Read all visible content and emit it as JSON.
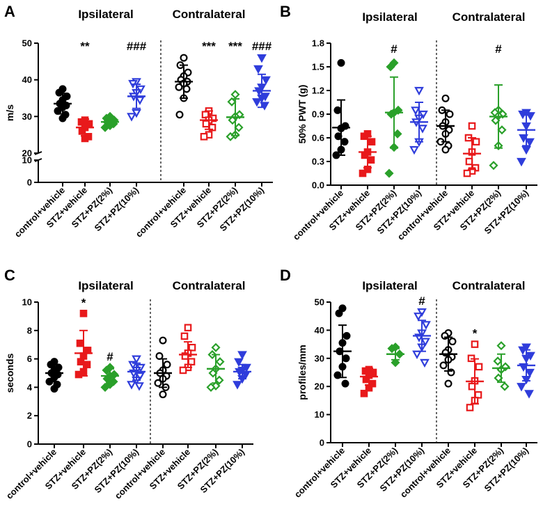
{
  "colors": {
    "control": "#000000",
    "stz_vehicle": "#e8191b",
    "pz2": "#2aa02a",
    "pz10": "#2f3ddb"
  },
  "chart_data": [
    {
      "panel": "A",
      "type": "scatter",
      "ylabel": "m/s",
      "broken_axis": true,
      "yticks": [
        "0",
        "10",
        "20",
        "30",
        "40",
        "50"
      ],
      "upper_range": [
        20,
        50
      ],
      "lower_range": [
        0,
        10
      ],
      "group_titles": [
        "Ipsilateral",
        "Contralateral"
      ],
      "categories": [
        "control+vehicle",
        "STZ+vehicle",
        "STZ+PZ(2%)",
        "STZ+PZ(10%)",
        "control+vehicle",
        "STZ+vehicle",
        "STZ+PZ(2%)",
        "STZ+PZ(10%)"
      ],
      "series": [
        {
          "name": "control+vehicle",
          "side": "Ipsilateral",
          "color": "control",
          "marker": "circle",
          "filled": true,
          "mean": 33.5,
          "sd": 2.8,
          "points": [
            37.5,
            36.5,
            35.5,
            34.5,
            33.5,
            33,
            32.5,
            31.5,
            30.5,
            29.5
          ],
          "sig": ""
        },
        {
          "name": "STZ+vehicle",
          "side": "Ipsilateral",
          "color": "stz_vehicle",
          "marker": "square",
          "filled": true,
          "mean": 27,
          "sd": 2.3,
          "points": [
            29,
            28.5,
            28,
            27,
            26,
            24.5,
            24
          ],
          "sig": "**"
        },
        {
          "name": "STZ+PZ(2%)",
          "side": "Ipsilateral",
          "color": "pz2",
          "marker": "diamond",
          "filled": true,
          "mean": 28.5,
          "sd": 0.9,
          "points": [
            30,
            29.5,
            29,
            28.5,
            28.5,
            28,
            27.5,
            27
          ],
          "sig": ""
        },
        {
          "name": "STZ+PZ(10%)",
          "side": "Ipsilateral",
          "color": "pz10",
          "marker": "triangle-down",
          "filled": false,
          "mean": 35.5,
          "sd": 3.3,
          "points": [
            39.5,
            39,
            37.5,
            36.5,
            35.5,
            34.5,
            31,
            30
          ],
          "sig": "###"
        },
        {
          "name": "control+vehicle",
          "side": "Contralateral",
          "color": "control",
          "marker": "circle",
          "filled": false,
          "mean": 39.5,
          "sd": 4.5,
          "points": [
            46,
            44,
            42,
            41,
            40,
            39.5,
            39,
            38,
            37.5,
            35,
            30.5
          ],
          "sig": ""
        },
        {
          "name": "STZ+vehicle",
          "side": "Contralateral",
          "color": "stz_vehicle",
          "marker": "square",
          "filled": false,
          "mean": 29,
          "sd": 2.5,
          "points": [
            31.5,
            30.5,
            29.5,
            29,
            28,
            27,
            25,
            24.5
          ],
          "sig": "***"
        },
        {
          "name": "STZ+PZ(2%)",
          "side": "Contralateral",
          "color": "pz2",
          "marker": "diamond",
          "filled": false,
          "mean": 29.8,
          "sd": 5,
          "points": [
            36,
            34,
            30.5,
            30,
            29,
            27,
            25,
            24.5
          ],
          "sig": "***"
        },
        {
          "name": "STZ+PZ(10%)",
          "side": "Contralateral",
          "color": "pz10",
          "marker": "triangle-down",
          "filled": true,
          "mean": 37,
          "sd": 4.5,
          "points": [
            46,
            43,
            40,
            38,
            37,
            35.5,
            35,
            34,
            33
          ],
          "sig": "###"
        }
      ]
    },
    {
      "panel": "B",
      "type": "scatter",
      "ylabel": "50% PWT (g)",
      "broken_axis": false,
      "yticks": [
        "0.0",
        "0.3",
        "0.6",
        "0.9",
        "1.2",
        "1.5",
        "1.8"
      ],
      "ylim": [
        0,
        1.8
      ],
      "group_titles": [
        "Ipsilateral",
        "Contralateral"
      ],
      "categories": [
        "control+vehicle",
        "STZ+vehicle",
        "STZ+PZ(2%)",
        "STZ+PZ(10%)",
        "control+vehicle",
        "STZ+vehicle",
        "STZ+PZ(2%)",
        "STZ+PZ(10%)"
      ],
      "series": [
        {
          "name": "control+vehicle",
          "side": "Ipsilateral",
          "color": "control",
          "marker": "circle",
          "filled": true,
          "mean": 0.73,
          "sd": 0.35,
          "points": [
            1.55,
            0.95,
            0.75,
            0.72,
            0.62,
            0.55,
            0.45,
            0.38
          ],
          "sig": ""
        },
        {
          "name": "STZ+vehicle",
          "side": "Ipsilateral",
          "color": "stz_vehicle",
          "marker": "square",
          "filled": true,
          "mean": 0.42,
          "sd": 0.2,
          "points": [
            0.65,
            0.62,
            0.55,
            0.42,
            0.38,
            0.32,
            0.2,
            0.15
          ],
          "sig": ""
        },
        {
          "name": "STZ+PZ(2%)",
          "side": "Ipsilateral",
          "color": "pz2",
          "marker": "diamond",
          "filled": true,
          "mean": 0.92,
          "sd": 0.45,
          "points": [
            1.55,
            1.5,
            0.95,
            0.92,
            0.9,
            0.65,
            0.48,
            0.15
          ],
          "sig": "#"
        },
        {
          "name": "STZ+PZ(10%)",
          "side": "Ipsilateral",
          "color": "pz10",
          "marker": "triangle-down",
          "filled": false,
          "mean": 0.8,
          "sd": 0.25,
          "points": [
            1.2,
            0.95,
            0.9,
            0.85,
            0.8,
            0.72,
            0.55,
            0.45
          ],
          "sig": ""
        },
        {
          "name": "control+vehicle",
          "side": "Contralateral",
          "color": "control",
          "marker": "circle",
          "filled": false,
          "mean": 0.75,
          "sd": 0.2,
          "points": [
            1.1,
            0.95,
            0.9,
            0.8,
            0.75,
            0.7,
            0.65,
            0.55,
            0.5,
            0.45
          ],
          "sig": ""
        },
        {
          "name": "STZ+vehicle",
          "side": "Contralateral",
          "color": "stz_vehicle",
          "marker": "square",
          "filled": false,
          "mean": 0.4,
          "sd": 0.2,
          "points": [
            0.75,
            0.6,
            0.55,
            0.42,
            0.3,
            0.22,
            0.18,
            0.15
          ],
          "sig": ""
        },
        {
          "name": "STZ+PZ(2%)",
          "side": "Contralateral",
          "color": "pz2",
          "marker": "diamond",
          "filled": false,
          "mean": 0.87,
          "sd": 0.4,
          "points": [
            0.95,
            0.92,
            0.9,
            0.88,
            0.82,
            0.7,
            0.5,
            0.25
          ],
          "sig": "#"
        },
        {
          "name": "STZ+PZ(10%)",
          "side": "Contralateral",
          "color": "pz10",
          "marker": "triangle-down",
          "filled": true,
          "mean": 0.7,
          "sd": 0.2,
          "points": [
            0.92,
            0.9,
            0.88,
            0.75,
            0.6,
            0.55,
            0.45,
            0.3
          ],
          "sig": ""
        }
      ]
    },
    {
      "panel": "C",
      "type": "scatter",
      "ylabel": "seconds",
      "broken_axis": false,
      "yticks": [
        "0",
        "2",
        "4",
        "6",
        "8",
        "10"
      ],
      "ylim": [
        0,
        10
      ],
      "group_titles": [
        "Ipsilateral",
        "Contralateral"
      ],
      "categories": [
        "control+vehicle",
        "STZ+vehicle",
        "STZ+PZ(2%)",
        "STZ+PZ(10%)",
        "control+vehicle",
        "STZ+vehicle",
        "STZ+PZ(2%)",
        "STZ+PZ(10%)"
      ],
      "series": [
        {
          "name": "control+vehicle",
          "side": "Ipsilateral",
          "color": "control",
          "marker": "circle",
          "filled": true,
          "mean": 5.0,
          "sd": 0.6,
          "points": [
            5.8,
            5.6,
            5.4,
            5.2,
            5,
            4.9,
            4.7,
            4.4,
            4.2,
            3.9
          ],
          "sig": ""
        },
        {
          "name": "STZ+vehicle",
          "side": "Ipsilateral",
          "color": "stz_vehicle",
          "marker": "square",
          "filled": true,
          "mean": 6.4,
          "sd": 1.6,
          "points": [
            9.2,
            7.1,
            6.6,
            6.2,
            5.8,
            5.6,
            5.1,
            4.9
          ],
          "sig": "*"
        },
        {
          "name": "STZ+PZ(2%)",
          "side": "Ipsilateral",
          "color": "pz2",
          "marker": "diamond",
          "filled": true,
          "mean": 4.8,
          "sd": 0.5,
          "points": [
            5.4,
            5.2,
            4.9,
            4.8,
            4.6,
            4.4,
            4.2,
            4.0
          ],
          "sig": "#"
        },
        {
          "name": "STZ+PZ(10%)",
          "side": "Ipsilateral",
          "color": "pz10",
          "marker": "triangle-down",
          "filled": false,
          "mean": 5.1,
          "sd": 0.6,
          "points": [
            6.0,
            5.6,
            5.4,
            5.2,
            5.0,
            4.8,
            4.5,
            4.2,
            4.1
          ],
          "sig": ""
        },
        {
          "name": "control+vehicle",
          "side": "Contralateral",
          "color": "control",
          "marker": "circle",
          "filled": false,
          "mean": 5.0,
          "sd": 1.0,
          "points": [
            7.3,
            6.2,
            5.6,
            5.2,
            5.0,
            4.8,
            4.6,
            4.3,
            4.0,
            3.5
          ],
          "sig": ""
        },
        {
          "name": "STZ+vehicle",
          "side": "Contralateral",
          "color": "stz_vehicle",
          "marker": "square",
          "filled": false,
          "mean": 6.3,
          "sd": 0.9,
          "points": [
            8.2,
            7.6,
            6.8,
            6.4,
            6.2,
            5.8,
            5.4,
            5.2
          ],
          "sig": ""
        },
        {
          "name": "STZ+PZ(2%)",
          "side": "Contralateral",
          "color": "pz2",
          "marker": "diamond",
          "filled": false,
          "mean": 5.3,
          "sd": 1.0,
          "points": [
            6.8,
            6.3,
            5.8,
            5.3,
            5.0,
            4.5,
            4.1,
            4.0
          ],
          "sig": ""
        },
        {
          "name": "STZ+PZ(10%)",
          "side": "Contralateral",
          "color": "pz10",
          "marker": "triangle-down",
          "filled": true,
          "mean": 5.1,
          "sd": 0.5,
          "points": [
            6.3,
            5.8,
            5.4,
            5.2,
            5.1,
            4.9,
            4.6,
            4.2
          ],
          "sig": ""
        }
      ]
    },
    {
      "panel": "D",
      "type": "scatter",
      "ylabel": "profiles/mm",
      "broken_axis": false,
      "yticks": [
        "0",
        "10",
        "20",
        "30",
        "40",
        "50"
      ],
      "ylim": [
        0,
        50
      ],
      "group_titles": [
        "Ipsilateral",
        "Contralateral"
      ],
      "categories": [
        "control+vehicle",
        "STZ+vehicle",
        "STZ+PZ(2%)",
        "STZ+PZ(10%)",
        "control+vehicle",
        "STZ+vehicle",
        "STZ+PZ(2%)",
        "STZ+PZ(10%)"
      ],
      "series": [
        {
          "name": "control+vehicle",
          "side": "Ipsilateral",
          "color": "control",
          "marker": "circle",
          "filled": true,
          "mean": 32.5,
          "sd": 9.3,
          "points": [
            47.8,
            46,
            38,
            35.5,
            32.5,
            30,
            27,
            24,
            21
          ],
          "sig": ""
        },
        {
          "name": "STZ+vehicle",
          "side": "Ipsilateral",
          "color": "stz_vehicle",
          "marker": "square",
          "filled": true,
          "mean": 23.5,
          "sd": 3,
          "points": [
            26,
            25.5,
            25,
            24,
            22.5,
            21,
            19.5,
            17.5
          ],
          "sig": ""
        },
        {
          "name": "STZ+PZ(2%)",
          "side": "Ipsilateral",
          "color": "pz2",
          "marker": "diamond",
          "filled": true,
          "mean": 31.5,
          "sd": 2,
          "points": [
            34,
            33.5,
            31.5,
            28.5
          ],
          "sig": ""
        },
        {
          "name": "STZ+PZ(10%)",
          "side": "Ipsilateral",
          "color": "pz10",
          "marker": "triangle-down",
          "filled": false,
          "mean": 38,
          "sd": 5.5,
          "points": [
            46.5,
            45,
            42,
            39,
            37.5,
            36,
            34,
            31.5,
            28.5
          ],
          "sig": "#"
        },
        {
          "name": "control+vehicle",
          "side": "Contralateral",
          "color": "control",
          "marker": "circle",
          "filled": false,
          "mean": 31.5,
          "sd": 6,
          "points": [
            39,
            38,
            36,
            33,
            32,
            30.5,
            29.5,
            27.5,
            25,
            21
          ],
          "sig": ""
        },
        {
          "name": "STZ+vehicle",
          "side": "Contralateral",
          "color": "stz_vehicle",
          "marker": "square",
          "filled": false,
          "mean": 21.8,
          "sd": 8,
          "points": [
            35,
            30,
            27,
            22,
            20,
            17,
            15,
            12.5
          ],
          "sig": "*"
        },
        {
          "name": "STZ+PZ(2%)",
          "side": "Contralateral",
          "color": "pz2",
          "marker": "diamond",
          "filled": false,
          "mean": 26.5,
          "sd": 5,
          "points": [
            34.5,
            29,
            27,
            26,
            23,
            20
          ],
          "sig": ""
        },
        {
          "name": "STZ+PZ(10%)",
          "side": "Contralateral",
          "color": "pz10",
          "marker": "triangle-down",
          "filled": true,
          "mean": 27.5,
          "sd": 5.5,
          "points": [
            34,
            33,
            31,
            30,
            27,
            25,
            22.5,
            20,
            17.5
          ],
          "sig": ""
        }
      ]
    }
  ]
}
